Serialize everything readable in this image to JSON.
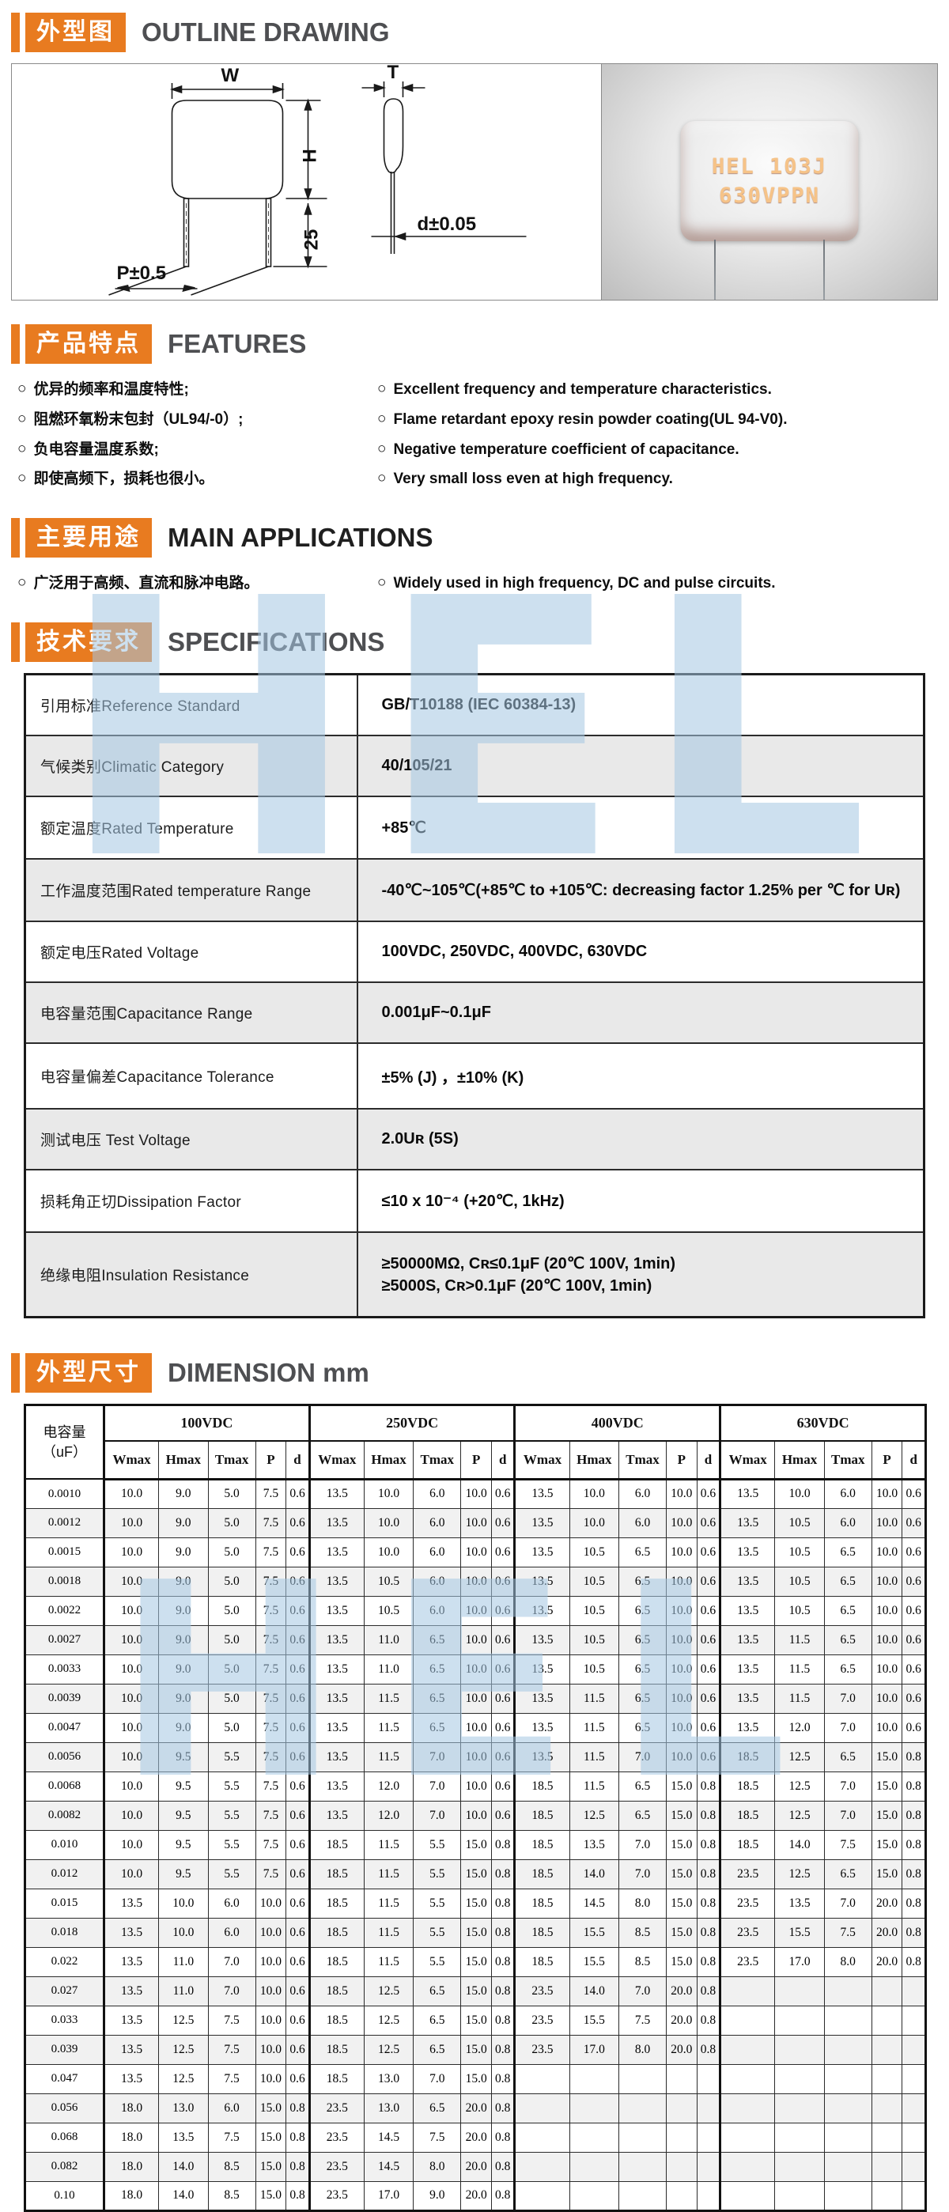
{
  "colors": {
    "accent_orange": "#E87B20",
    "heading_gray": "#4E4F52",
    "watermark_blue": "#A4C6E1",
    "capacitor_body_orange": "#E2451B",
    "capacitor_marking": "#F6C388"
  },
  "watermark": {
    "text": "HEL"
  },
  "sections": {
    "outline": {
      "badge_cn": "外型图",
      "title_en": "OUTLINE DRAWING",
      "drawing_labels": {
        "w": "W",
        "t": "T",
        "h": "H",
        "lead_length": "25",
        "pitch": "P±0.5",
        "diameter": "d±0.05"
      },
      "photo_marking_line1": "HEL 103J",
      "photo_marking_line2": "630VPPN"
    },
    "features": {
      "badge_cn": "产品特点",
      "title_en": "FEATURES",
      "items_cn": [
        "优异的频率和温度特性;",
        "阻燃环氧粉末包封（UL94/-0）;",
        "负电容量温度系数;",
        "即使高频下，损耗也很小。"
      ],
      "items_en": [
        "Excellent frequency and temperature characteristics.",
        "Flame retardant epoxy resin powder coating(UL 94-V0).",
        "Negative temperature coefficient of capacitance.",
        "Very small loss even at high frequency."
      ]
    },
    "applications": {
      "badge_cn": "主要用途",
      "title_en": "MAIN APPLICATIONS",
      "items_cn": [
        "广泛用于高频、直流和脉冲电路。"
      ],
      "items_en": [
        "Widely used in high frequency, DC and pulse circuits."
      ]
    },
    "specifications": {
      "badge_cn": "技术要求",
      "title_en": "SPECIFICATIONS",
      "rows": [
        {
          "label": "引用标准Reference  Standard",
          "values": [
            "GB/T10188  (IEC 60384-13)"
          ]
        },
        {
          "label": "气候类别Climatic  Category",
          "values": [
            "40/105/21"
          ]
        },
        {
          "label": "额定温度Rated  Temperature",
          "values": [
            "+85℃"
          ]
        },
        {
          "label": "工作温度范围Rated temperature Range",
          "values": [
            "-40℃~105℃(+85℃ to +105℃: decreasing factor 1.25% per ℃ for Uʀ)"
          ]
        },
        {
          "label": "额定电压Rated Voltage",
          "values": [
            "100VDC,  250VDC,  400VDC,  630VDC"
          ]
        },
        {
          "label": "电容量范围Capacitance Range",
          "values": [
            "0.001μF~0.1μF"
          ]
        },
        {
          "label": "电容量偏差Capacitance Tolerance",
          "values": [
            "±5%  (J) ，±10%  (K)"
          ]
        },
        {
          "label": "测试电压 Test Voltage",
          "values": [
            "2.0Uʀ  (5S)"
          ]
        },
        {
          "label": "损耗角正切Dissipation Factor",
          "values": [
            "≤10 x 10⁻⁴  (+20℃,  1kHz)"
          ]
        },
        {
          "label": "绝缘电阻Insulation Resistance",
          "values": [
            "≥50000MΩ,  Cʀ≤0.1μF  (20℃ 100V,  1min)",
            "≥5000S,  Cʀ>0.1μF  (20℃ 100V,  1min)"
          ]
        }
      ]
    },
    "dimension": {
      "badge_cn": "外型尺寸",
      "title_en": "DIMENSION mm",
      "cap_header_line1": "电容量",
      "cap_header_line2": "（uF）",
      "groups": [
        "100VDC",
        "250VDC",
        "400VDC",
        "630VDC"
      ],
      "sub_columns": [
        "Wmax",
        "Hmax",
        "Tmax",
        "P",
        "d"
      ],
      "rows": [
        {
          "cap": "0.0010",
          "g": [
            [
              "10.0",
              "9.0",
              "5.0",
              "7.5",
              "0.6"
            ],
            [
              "13.5",
              "10.0",
              "6.0",
              "10.0",
              "0.6"
            ],
            [
              "13.5",
              "10.0",
              "6.0",
              "10.0",
              "0.6"
            ],
            [
              "13.5",
              "10.0",
              "6.0",
              "10.0",
              "0.6"
            ]
          ]
        },
        {
          "cap": "0.0012",
          "g": [
            [
              "10.0",
              "9.0",
              "5.0",
              "7.5",
              "0.6"
            ],
            [
              "13.5",
              "10.0",
              "6.0",
              "10.0",
              "0.6"
            ],
            [
              "13.5",
              "10.0",
              "6.0",
              "10.0",
              "0.6"
            ],
            [
              "13.5",
              "10.5",
              "6.0",
              "10.0",
              "0.6"
            ]
          ]
        },
        {
          "cap": "0.0015",
          "g": [
            [
              "10.0",
              "9.0",
              "5.0",
              "7.5",
              "0.6"
            ],
            [
              "13.5",
              "10.0",
              "6.0",
              "10.0",
              "0.6"
            ],
            [
              "13.5",
              "10.5",
              "6.5",
              "10.0",
              "0.6"
            ],
            [
              "13.5",
              "10.5",
              "6.5",
              "10.0",
              "0.6"
            ]
          ]
        },
        {
          "cap": "0.0018",
          "g": [
            [
              "10.0",
              "9.0",
              "5.0",
              "7.5",
              "0.6"
            ],
            [
              "13.5",
              "10.5",
              "6.0",
              "10.0",
              "0.6"
            ],
            [
              "13.5",
              "10.5",
              "6.5",
              "10.0",
              "0.6"
            ],
            [
              "13.5",
              "10.5",
              "6.5",
              "10.0",
              "0.6"
            ]
          ]
        },
        {
          "cap": "0.0022",
          "g": [
            [
              "10.0",
              "9.0",
              "5.0",
              "7.5",
              "0.6"
            ],
            [
              "13.5",
              "10.5",
              "6.0",
              "10.0",
              "0.6"
            ],
            [
              "13.5",
              "10.5",
              "6.5",
              "10.0",
              "0.6"
            ],
            [
              "13.5",
              "10.5",
              "6.5",
              "10.0",
              "0.6"
            ]
          ]
        },
        {
          "cap": "0.0027",
          "g": [
            [
              "10.0",
              "9.0",
              "5.0",
              "7.5",
              "0.6"
            ],
            [
              "13.5",
              "11.0",
              "6.5",
              "10.0",
              "0.6"
            ],
            [
              "13.5",
              "10.5",
              "6.5",
              "10.0",
              "0.6"
            ],
            [
              "13.5",
              "11.5",
              "6.5",
              "10.0",
              "0.6"
            ]
          ]
        },
        {
          "cap": "0.0033",
          "g": [
            [
              "10.0",
              "9.0",
              "5.0",
              "7.5",
              "0.6"
            ],
            [
              "13.5",
              "11.0",
              "6.5",
              "10.0",
              "0.6"
            ],
            [
              "13.5",
              "10.5",
              "6.5",
              "10.0",
              "0.6"
            ],
            [
              "13.5",
              "11.5",
              "6.5",
              "10.0",
              "0.6"
            ]
          ]
        },
        {
          "cap": "0.0039",
          "g": [
            [
              "10.0",
              "9.0",
              "5.0",
              "7.5",
              "0.6"
            ],
            [
              "13.5",
              "11.5",
              "6.5",
              "10.0",
              "0.6"
            ],
            [
              "13.5",
              "11.5",
              "6.5",
              "10.0",
              "0.6"
            ],
            [
              "13.5",
              "11.5",
              "7.0",
              "10.0",
              "0.6"
            ]
          ]
        },
        {
          "cap": "0.0047",
          "g": [
            [
              "10.0",
              "9.0",
              "5.0",
              "7.5",
              "0.6"
            ],
            [
              "13.5",
              "11.5",
              "6.5",
              "10.0",
              "0.6"
            ],
            [
              "13.5",
              "11.5",
              "6.5",
              "10.0",
              "0.6"
            ],
            [
              "13.5",
              "12.0",
              "7.0",
              "10.0",
              "0.6"
            ]
          ]
        },
        {
          "cap": "0.0056",
          "g": [
            [
              "10.0",
              "9.5",
              "5.5",
              "7.5",
              "0.6"
            ],
            [
              "13.5",
              "11.5",
              "7.0",
              "10.0",
              "0.6"
            ],
            [
              "13.5",
              "11.5",
              "7.0",
              "10.0",
              "0.6"
            ],
            [
              "18.5",
              "12.5",
              "6.5",
              "15.0",
              "0.8"
            ]
          ]
        },
        {
          "cap": "0.0068",
          "g": [
            [
              "10.0",
              "9.5",
              "5.5",
              "7.5",
              "0.6"
            ],
            [
              "13.5",
              "12.0",
              "7.0",
              "10.0",
              "0.6"
            ],
            [
              "18.5",
              "11.5",
              "6.5",
              "15.0",
              "0.8"
            ],
            [
              "18.5",
              "12.5",
              "7.0",
              "15.0",
              "0.8"
            ]
          ]
        },
        {
          "cap": "0.0082",
          "g": [
            [
              "10.0",
              "9.5",
              "5.5",
              "7.5",
              "0.6"
            ],
            [
              "13.5",
              "12.0",
              "7.0",
              "10.0",
              "0.6"
            ],
            [
              "18.5",
              "12.5",
              "6.5",
              "15.0",
              "0.8"
            ],
            [
              "18.5",
              "12.5",
              "7.0",
              "15.0",
              "0.8"
            ]
          ]
        },
        {
          "cap": "0.010",
          "g": [
            [
              "10.0",
              "9.5",
              "5.5",
              "7.5",
              "0.6"
            ],
            [
              "18.5",
              "11.5",
              "5.5",
              "15.0",
              "0.8"
            ],
            [
              "18.5",
              "13.5",
              "7.0",
              "15.0",
              "0.8"
            ],
            [
              "18.5",
              "14.0",
              "7.5",
              "15.0",
              "0.8"
            ]
          ]
        },
        {
          "cap": "0.012",
          "g": [
            [
              "10.0",
              "9.5",
              "5.5",
              "7.5",
              "0.6"
            ],
            [
              "18.5",
              "11.5",
              "5.5",
              "15.0",
              "0.8"
            ],
            [
              "18.5",
              "14.0",
              "7.0",
              "15.0",
              "0.8"
            ],
            [
              "23.5",
              "12.5",
              "6.5",
              "15.0",
              "0.8"
            ]
          ]
        },
        {
          "cap": "0.015",
          "g": [
            [
              "13.5",
              "10.0",
              "6.0",
              "10.0",
              "0.6"
            ],
            [
              "18.5",
              "11.5",
              "5.5",
              "15.0",
              "0.8"
            ],
            [
              "18.5",
              "14.5",
              "8.0",
              "15.0",
              "0.8"
            ],
            [
              "23.5",
              "13.5",
              "7.0",
              "20.0",
              "0.8"
            ]
          ]
        },
        {
          "cap": "0.018",
          "g": [
            [
              "13.5",
              "10.0",
              "6.0",
              "10.0",
              "0.6"
            ],
            [
              "18.5",
              "11.5",
              "5.5",
              "15.0",
              "0.8"
            ],
            [
              "18.5",
              "15.5",
              "8.5",
              "15.0",
              "0.8"
            ],
            [
              "23.5",
              "15.5",
              "7.5",
              "20.0",
              "0.8"
            ]
          ]
        },
        {
          "cap": "0.022",
          "g": [
            [
              "13.5",
              "11.0",
              "7.0",
              "10.0",
              "0.6"
            ],
            [
              "18.5",
              "11.5",
              "5.5",
              "15.0",
              "0.8"
            ],
            [
              "18.5",
              "15.5",
              "8.5",
              "15.0",
              "0.8"
            ],
            [
              "23.5",
              "17.0",
              "8.0",
              "20.0",
              "0.8"
            ]
          ]
        },
        {
          "cap": "0.027",
          "g": [
            [
              "13.5",
              "11.0",
              "7.0",
              "10.0",
              "0.6"
            ],
            [
              "18.5",
              "12.5",
              "6.5",
              "15.0",
              "0.8"
            ],
            [
              "23.5",
              "14.0",
              "7.0",
              "20.0",
              "0.8"
            ],
            [
              "",
              "",
              "",
              "",
              ""
            ]
          ]
        },
        {
          "cap": "0.033",
          "g": [
            [
              "13.5",
              "12.5",
              "7.5",
              "10.0",
              "0.6"
            ],
            [
              "18.5",
              "12.5",
              "6.5",
              "15.0",
              "0.8"
            ],
            [
              "23.5",
              "15.5",
              "7.5",
              "20.0",
              "0.8"
            ],
            [
              "",
              "",
              "",
              "",
              ""
            ]
          ]
        },
        {
          "cap": "0.039",
          "g": [
            [
              "13.5",
              "12.5",
              "7.5",
              "10.0",
              "0.6"
            ],
            [
              "18.5",
              "12.5",
              "6.5",
              "15.0",
              "0.8"
            ],
            [
              "23.5",
              "17.0",
              "8.0",
              "20.0",
              "0.8"
            ],
            [
              "",
              "",
              "",
              "",
              ""
            ]
          ]
        },
        {
          "cap": "0.047",
          "g": [
            [
              "13.5",
              "12.5",
              "7.5",
              "10.0",
              "0.6"
            ],
            [
              "18.5",
              "13.0",
              "7.0",
              "15.0",
              "0.8"
            ],
            [
              "",
              "",
              "",
              "",
              ""
            ],
            [
              "",
              "",
              "",
              "",
              ""
            ]
          ]
        },
        {
          "cap": "0.056",
          "g": [
            [
              "18.0",
              "13.0",
              "6.0",
              "15.0",
              "0.8"
            ],
            [
              "23.5",
              "13.0",
              "6.5",
              "20.0",
              "0.8"
            ],
            [
              "",
              "",
              "",
              "",
              ""
            ],
            [
              "",
              "",
              "",
              "",
              ""
            ]
          ]
        },
        {
          "cap": "0.068",
          "g": [
            [
              "18.0",
              "13.5",
              "7.5",
              "15.0",
              "0.8"
            ],
            [
              "23.5",
              "14.5",
              "7.5",
              "20.0",
              "0.8"
            ],
            [
              "",
              "",
              "",
              "",
              ""
            ],
            [
              "",
              "",
              "",
              "",
              ""
            ]
          ]
        },
        {
          "cap": "0.082",
          "g": [
            [
              "18.0",
              "14.0",
              "8.5",
              "15.0",
              "0.8"
            ],
            [
              "23.5",
              "14.5",
              "8.0",
              "20.0",
              "0.8"
            ],
            [
              "",
              "",
              "",
              "",
              ""
            ],
            [
              "",
              "",
              "",
              "",
              ""
            ]
          ]
        },
        {
          "cap": "0.10",
          "g": [
            [
              "18.0",
              "14.0",
              "8.5",
              "15.0",
              "0.8"
            ],
            [
              "23.5",
              "17.0",
              "9.0",
              "20.0",
              "0.8"
            ],
            [
              "",
              "",
              "",
              "",
              ""
            ],
            [
              "",
              "",
              "",
              "",
              ""
            ]
          ]
        }
      ]
    }
  }
}
